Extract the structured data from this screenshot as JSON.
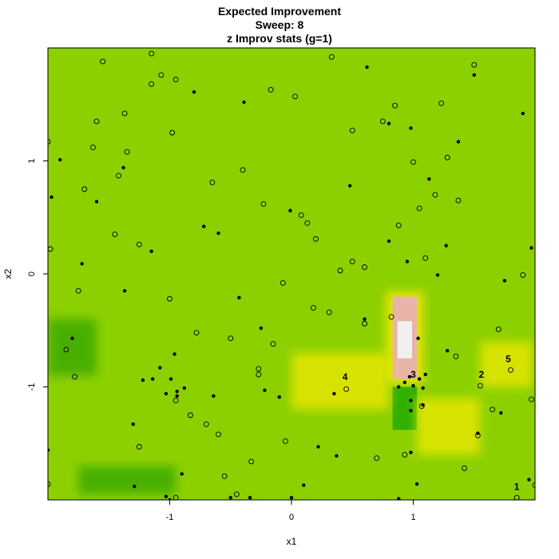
{
  "chart_data": {
    "type": "heatmap",
    "title": "Expected Improvement",
    "subtitle": "Sweep: 8",
    "subtitle2": "z Improv stats (g=1)",
    "xlabel": "x1",
    "ylabel": "x2",
    "xlim": [
      -2,
      2
    ],
    "ylim": [
      -2,
      2
    ],
    "x_ticks": [
      -1,
      0,
      1
    ],
    "y_ticks": [
      -1,
      0,
      1
    ],
    "colors": {
      "base": "#8cd000",
      "low": "#3caa00",
      "high_yellow": "#e6e600",
      "peak_pink": "#e8b4a8",
      "peak_white": "#f0f0f0",
      "dark_green": "#22aa00"
    },
    "surface_regions": [
      {
        "x": [
          0.83,
          1.03
        ],
        "y": [
          -0.93,
          -0.2
        ],
        "level": "peak"
      },
      {
        "x": [
          0.83,
          1.03
        ],
        "y": [
          -1.38,
          -1.0
        ],
        "level": "low"
      },
      {
        "x": [
          1.03,
          1.55
        ],
        "y": [
          -1.6,
          -1.1
        ],
        "level": "high"
      },
      {
        "x": [
          0.0,
          0.8
        ],
        "y": [
          -1.2,
          -0.7
        ],
        "level": "high"
      },
      {
        "x": [
          -1.75,
          -0.95
        ],
        "y": [
          -1.95,
          -1.7
        ],
        "level": "low"
      },
      {
        "x": [
          1.55,
          1.98
        ],
        "y": [
          -1.0,
          -0.6
        ],
        "level": "high"
      },
      {
        "x": [
          -2.0,
          -1.6
        ],
        "y": [
          -0.9,
          -0.4
        ],
        "level": "low"
      }
    ],
    "candidates": [
      [
        -1.55,
        1.88
      ],
      [
        -1.15,
        1.95
      ],
      [
        0.33,
        1.92
      ],
      [
        1.5,
        1.85
      ],
      [
        -1.15,
        1.68
      ],
      [
        -0.95,
        1.72
      ],
      [
        -1.07,
        1.76
      ],
      [
        -0.17,
        1.63
      ],
      [
        0.03,
        1.57
      ],
      [
        0.85,
        1.49
      ],
      [
        1.23,
        1.51
      ],
      [
        -1.37,
        1.42
      ],
      [
        -1.6,
        1.35
      ],
      [
        0.5,
        1.27
      ],
      [
        0.75,
        1.35
      ],
      [
        -2.0,
        1.17
      ],
      [
        -1.63,
        1.12
      ],
      [
        -0.98,
        1.25
      ],
      [
        -1.35,
        1.08
      ],
      [
        1.28,
        1.03
      ],
      [
        1.0,
        0.99
      ],
      [
        -0.4,
        0.92
      ],
      [
        -1.42,
        0.87
      ],
      [
        -0.65,
        0.81
      ],
      [
        -1.7,
        0.75
      ],
      [
        1.18,
        0.7
      ],
      [
        1.37,
        0.65
      ],
      [
        -0.23,
        0.62
      ],
      [
        1.05,
        0.58
      ],
      [
        0.08,
        0.52
      ],
      [
        0.13,
        0.45
      ],
      [
        0.88,
        0.43
      ],
      [
        -1.45,
        0.35
      ],
      [
        0.2,
        0.31
      ],
      [
        -1.25,
        0.26
      ],
      [
        -1.98,
        0.22
      ],
      [
        0.5,
        0.11
      ],
      [
        0.6,
        0.06
      ],
      [
        0.4,
        0.03
      ],
      [
        1.1,
        0.14
      ],
      [
        1.9,
        -0.01
      ],
      [
        -0.07,
        -0.08
      ],
      [
        -1.75,
        -0.15
      ],
      [
        -1.0,
        -0.22
      ],
      [
        0.18,
        -0.3
      ],
      [
        0.31,
        -0.34
      ],
      [
        0.82,
        -0.38
      ],
      [
        0.6,
        -0.44
      ],
      [
        -0.78,
        -0.52
      ],
      [
        1.7,
        -0.49
      ],
      [
        -0.5,
        -0.57
      ],
      [
        -0.15,
        -0.62
      ],
      [
        -1.85,
        -0.67
      ],
      [
        1.35,
        -0.73
      ],
      [
        -0.27,
        -0.84
      ],
      [
        -1.78,
        -0.91
      ],
      [
        -0.27,
        -0.89
      ],
      [
        1.65,
        -1.2
      ],
      [
        -0.83,
        -1.25
      ],
      [
        -0.95,
        -1.12
      ],
      [
        -0.7,
        -1.33
      ],
      [
        -0.6,
        -1.42
      ],
      [
        0.45,
        -1.02
      ],
      [
        1.07,
        -1.17
      ],
      [
        1.55,
        -0.99
      ],
      [
        1.8,
        -0.85
      ],
      [
        1.97,
        -1.11
      ],
      [
        -1.25,
        -1.53
      ],
      [
        -0.05,
        -1.48
      ],
      [
        0.7,
        -1.63
      ],
      [
        0.93,
        -1.6
      ],
      [
        -0.33,
        -1.66
      ],
      [
        1.42,
        -1.72
      ],
      [
        -0.55,
        -1.79
      ],
      [
        -2.0,
        -1.86
      ],
      [
        1.53,
        -1.43
      ],
      [
        1.85,
        -1.98
      ],
      [
        -0.95,
        -1.98
      ],
      [
        -0.45,
        -1.95
      ],
      [
        2.0,
        -1.87
      ]
    ],
    "observed": [
      [
        0.62,
        1.83
      ],
      [
        1.5,
        1.76
      ],
      [
        -0.8,
        1.61
      ],
      [
        -0.39,
        1.52
      ],
      [
        1.9,
        1.42
      ],
      [
        0.8,
        1.33
      ],
      [
        0.98,
        1.29
      ],
      [
        1.37,
        1.17
      ],
      [
        -1.9,
        1.01
      ],
      [
        -1.38,
        0.94
      ],
      [
        1.13,
        0.84
      ],
      [
        0.48,
        0.78
      ],
      [
        -1.97,
        0.68
      ],
      [
        -1.6,
        0.64
      ],
      [
        -0.01,
        0.56
      ],
      [
        -0.72,
        0.42
      ],
      [
        -0.6,
        0.36
      ],
      [
        0.8,
        0.29
      ],
      [
        1.27,
        0.25
      ],
      [
        -1.15,
        0.2
      ],
      [
        1.97,
        0.23
      ],
      [
        -1.72,
        0.09
      ],
      [
        0.95,
        0.11
      ],
      [
        1.2,
        -0.01
      ],
      [
        1.75,
        -0.06
      ],
      [
        -1.37,
        -0.15
      ],
      [
        -0.43,
        -0.21
      ],
      [
        0.6,
        -0.4
      ],
      [
        -0.25,
        -0.48
      ],
      [
        1.04,
        -0.57
      ],
      [
        -1.8,
        -0.57
      ],
      [
        1.28,
        -0.68
      ],
      [
        -0.96,
        -0.71
      ],
      [
        -1.08,
        -0.83
      ],
      [
        -0.99,
        -0.93
      ],
      [
        -1.22,
        -0.94
      ],
      [
        -1.14,
        -0.93
      ],
      [
        1.1,
        -0.89
      ],
      [
        0.97,
        -0.91
      ],
      [
        1.05,
        -0.93
      ],
      [
        0.93,
        -0.96
      ],
      [
        1.0,
        -0.99
      ],
      [
        0.88,
        -1.0
      ],
      [
        1.08,
        -1.01
      ],
      [
        -0.88,
        -1.01
      ],
      [
        -0.94,
        -1.04
      ],
      [
        -0.22,
        -1.03
      ],
      [
        -1.03,
        -1.06
      ],
      [
        0.35,
        -1.06
      ],
      [
        -0.94,
        -1.08
      ],
      [
        -0.64,
        -1.08
      ],
      [
        -0.1,
        -1.09
      ],
      [
        0.98,
        -1.12
      ],
      [
        1.08,
        -1.16
      ],
      [
        1.72,
        -1.23
      ],
      [
        -1.3,
        -1.33
      ],
      [
        1.53,
        -1.41
      ],
      [
        0.98,
        -1.21
      ],
      [
        0.22,
        -1.53
      ],
      [
        0.98,
        -1.58
      ],
      [
        0.37,
        -1.61
      ],
      [
        -0.9,
        -1.77
      ],
      [
        1.95,
        -1.82
      ],
      [
        1.03,
        -1.86
      ],
      [
        0.1,
        -1.87
      ],
      [
        -1.29,
        -1.88
      ],
      [
        -1.03,
        -1.97
      ],
      [
        -0.5,
        -1.98
      ],
      [
        -0.34,
        -1.98
      ],
      [
        0.0,
        -1.98
      ],
      [
        0.88,
        -1.99
      ],
      [
        -1.0,
        -2.0
      ],
      [
        -2.0,
        -1.56
      ]
    ],
    "annotations": [
      {
        "label": "1",
        "x": 1.85,
        "y": -1.91
      },
      {
        "label": "2",
        "x": 1.56,
        "y": -0.92
      },
      {
        "label": "3",
        "x": 1.0,
        "y": -0.92
      },
      {
        "label": "4",
        "x": 0.44,
        "y": -0.94
      },
      {
        "label": "5",
        "x": 1.78,
        "y": -0.78
      }
    ]
  }
}
